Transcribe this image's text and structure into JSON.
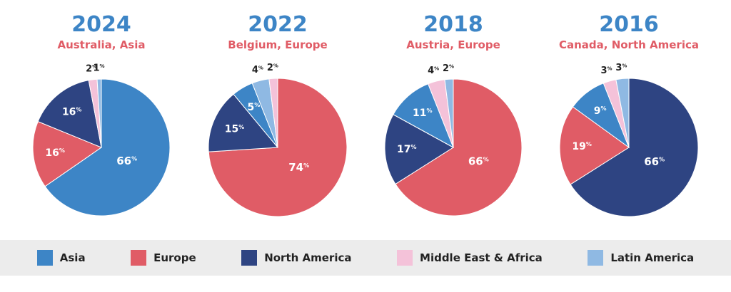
{
  "chart_data": [
    {
      "type": "pie",
      "title": "2024",
      "subtitle": "Australia, Asia",
      "categories": [
        "Asia",
        "Europe",
        "North America",
        "Middle East & Africa",
        "Latin America"
      ],
      "values": [
        66,
        16,
        16,
        2,
        1
      ]
    },
    {
      "type": "pie",
      "title": "2022",
      "subtitle": "Belgium, Europe",
      "categories": [
        "Asia",
        "Europe",
        "North America",
        "Middle East & Africa",
        "Latin America"
      ],
      "values": [
        5,
        74,
        15,
        2,
        4
      ]
    },
    {
      "type": "pie",
      "title": "2018",
      "subtitle": "Austria, Europe",
      "categories": [
        "Asia",
        "Europe",
        "North America",
        "Middle East & Africa",
        "Latin America"
      ],
      "values": [
        11,
        66,
        17,
        4,
        2
      ]
    },
    {
      "type": "pie",
      "title": "2016",
      "subtitle": "Canada, North America",
      "categories": [
        "Asia",
        "Europe",
        "North America",
        "Middle East & Africa",
        "Latin America"
      ],
      "values": [
        9,
        19,
        66,
        3,
        3
      ]
    }
  ],
  "legend": [
    {
      "label": "Asia",
      "color": "#3d85c6"
    },
    {
      "label": "Europe",
      "color": "#e05c66"
    },
    {
      "label": "North America",
      "color": "#2e4482"
    },
    {
      "label": "Middle East & Africa",
      "color": "#f4c2d9"
    },
    {
      "label": "Latin America",
      "color": "#8fb9e3"
    }
  ],
  "colors": {
    "title": "#3d85c6",
    "subtitle": "#e05c66",
    "label_dark": "#222222",
    "label_light": "#ffffff"
  }
}
